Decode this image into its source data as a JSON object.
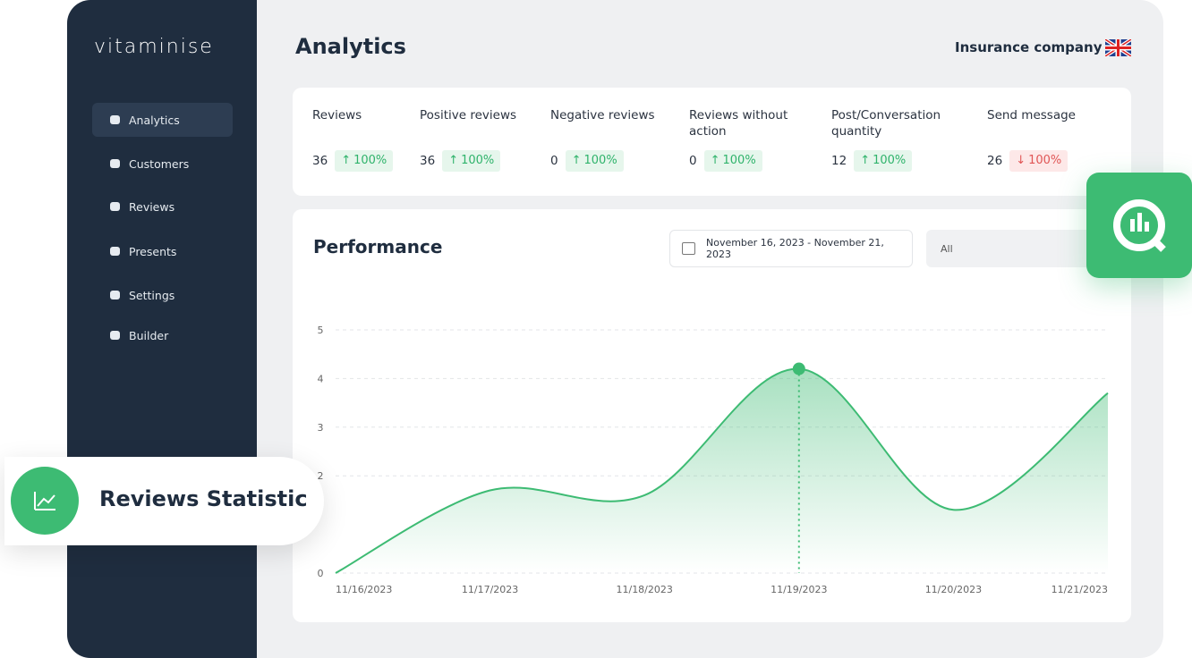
{
  "sidebar": {
    "logo": "vitaminise",
    "nav": [
      "Analytics",
      "Customers",
      "Reviews",
      "Presents",
      "Settings",
      "Builder"
    ]
  },
  "header": {
    "title": "Analytics",
    "company": "Insurance company"
  },
  "stats": [
    {
      "label": "Reviews",
      "value": "36",
      "change": "100%",
      "badge_color": "#2fb36b"
    },
    {
      "label": "Positive reviews",
      "value": "36",
      "change": "100%",
      "badge_color": "#2fb36b"
    },
    {
      "label": "Negative reviews",
      "value": "0",
      "change": "100%",
      "badge_color": "#2fb36b"
    },
    {
      "label": "Reviews without action",
      "value": "0",
      "change": "100%",
      "badge_color": "#2fb36b"
    },
    {
      "label": "Post/Conversation quantity",
      "value": "12",
      "change": "100%",
      "badge_color": "#2fb36b"
    },
    {
      "label": "Send message",
      "value": "26",
      "change": "100%",
      "badge_color": "#e05555"
    }
  ],
  "performance": {
    "title": "Performance",
    "date_range": "November 16, 2023 - November 21, 2023",
    "filter": "All"
  },
  "floating_card": "Reviews Statistic",
  "chart_data": {
    "type": "line",
    "categories": [
      "11/16/2023",
      "11/17/2023",
      "11/18/2023",
      "11/19/2023",
      "11/20/2023",
      "11/21/2023"
    ],
    "values": [
      0,
      1.7,
      1.6,
      4.2,
      1.3,
      3.7
    ],
    "color": "#3dbb73",
    "ylim": [
      0,
      5
    ],
    "yticks": [
      0,
      2,
      3,
      4,
      5
    ],
    "grid": true
  }
}
